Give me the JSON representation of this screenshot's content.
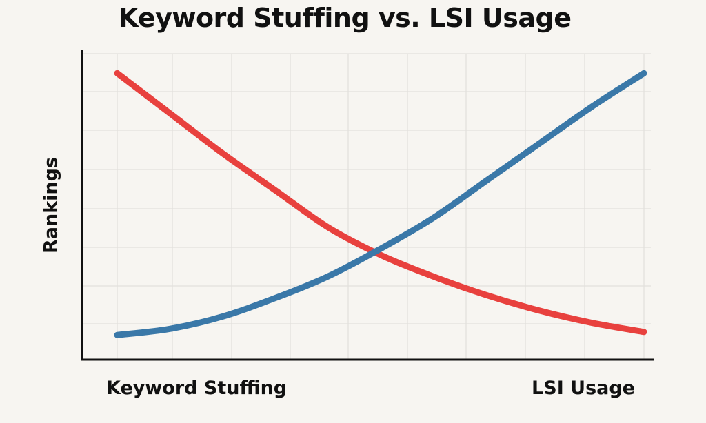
{
  "chart_data": {
    "type": "line",
    "title": "Keyword Stuffing vs. LSI Usage",
    "ylabel": "Rankings",
    "xlabel_left": "Keyword Stuffing",
    "xlabel_right": "LSI Usage",
    "grid": true,
    "x": [
      0,
      0.1,
      0.2,
      0.3,
      0.4,
      0.5,
      0.6,
      0.7,
      0.8,
      0.9,
      1.0
    ],
    "xlim": [
      0,
      1
    ],
    "ylim": [
      0,
      1
    ],
    "series": [
      {
        "color": "#e8413e",
        "values": [
          0.93,
          0.8,
          0.67,
          0.55,
          0.43,
          0.34,
          0.27,
          0.21,
          0.16,
          0.12,
          0.09
        ]
      },
      {
        "color": "#3a78a8",
        "values": [
          0.08,
          0.1,
          0.14,
          0.2,
          0.27,
          0.36,
          0.46,
          0.58,
          0.7,
          0.82,
          0.93
        ]
      }
    ]
  }
}
